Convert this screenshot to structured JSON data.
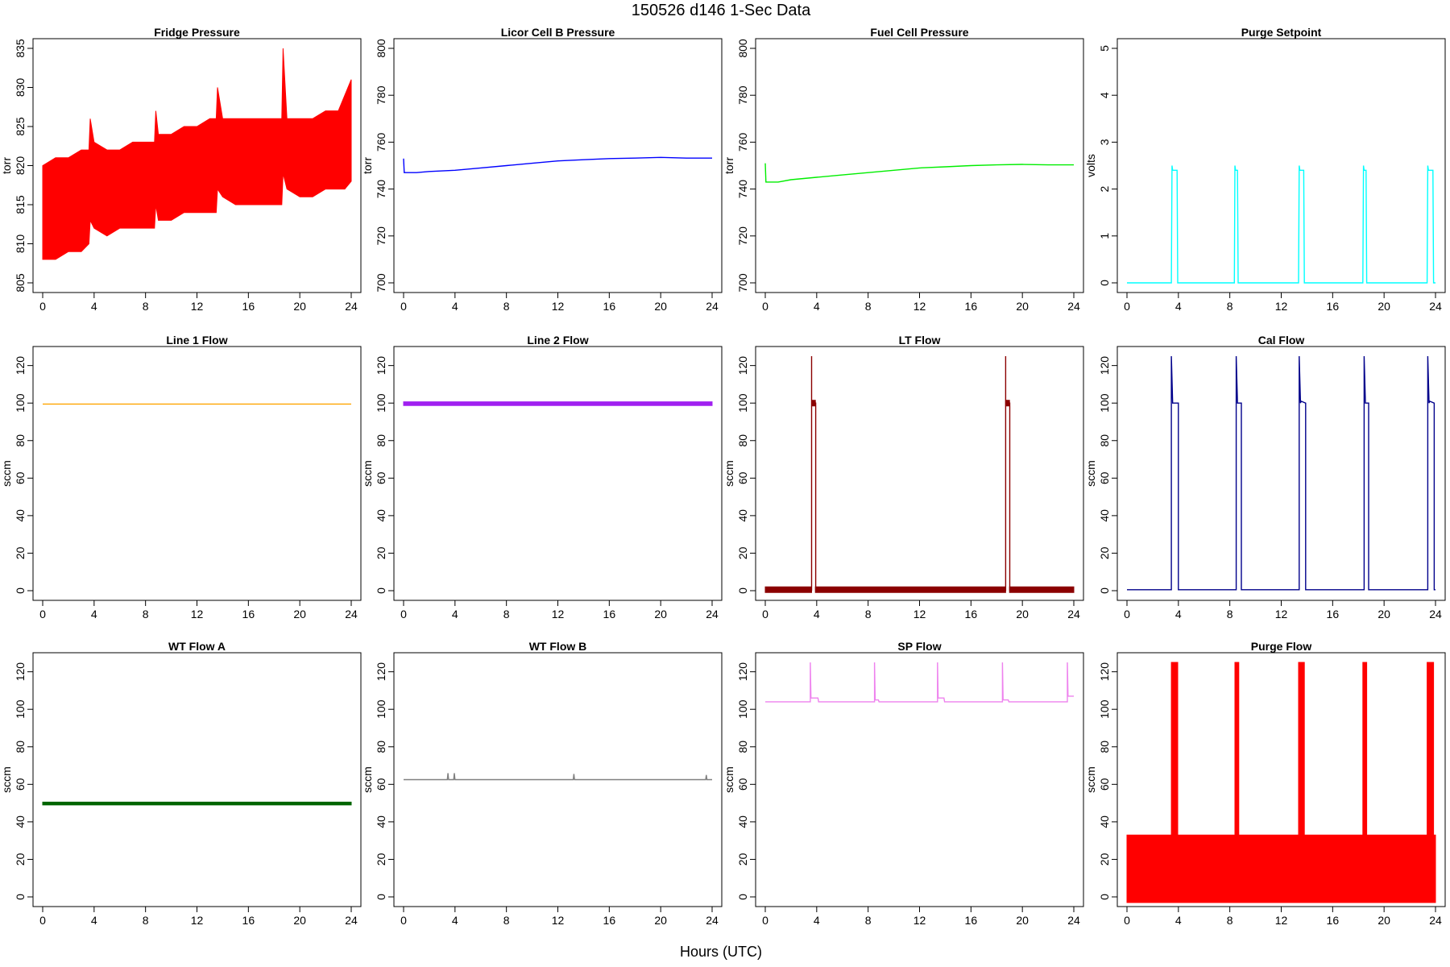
{
  "figure": {
    "title": "150526   d146   1-Sec Data",
    "xlabel": "Hours (UTC)"
  },
  "chart_data": [
    {
      "type": "line",
      "title": "Fridge Pressure",
      "ylabel": "torr",
      "color": "#ff0000",
      "xlim": [
        0,
        24
      ],
      "xticks": [
        0,
        4,
        8,
        12,
        16,
        20,
        24
      ],
      "ylim": [
        805,
        835
      ],
      "yticks": [
        805,
        810,
        815,
        820,
        825,
        830,
        835
      ],
      "series": [
        {
          "kind": "band",
          "x": [
            0,
            1,
            2,
            3,
            3.6,
            3.7,
            4,
            5,
            6,
            7,
            8,
            8.7,
            8.8,
            9,
            10,
            11,
            12,
            13,
            13.5,
            13.6,
            14,
            15,
            16,
            17,
            18,
            18.6,
            18.7,
            19,
            20,
            21,
            22,
            23,
            23.5,
            24
          ],
          "low": [
            808,
            808,
            809,
            809,
            810,
            813,
            812,
            811,
            812,
            812,
            812,
            812,
            815,
            813,
            813,
            814,
            814,
            814,
            814,
            817,
            816,
            815,
            815,
            815,
            815,
            815,
            819,
            817,
            816,
            816,
            817,
            817,
            817,
            818
          ],
          "high": [
            820,
            821,
            821,
            822,
            822,
            826,
            823,
            822,
            822,
            823,
            823,
            823,
            827,
            824,
            824,
            825,
            825,
            826,
            826,
            830,
            826,
            826,
            826,
            826,
            826,
            826,
            835,
            826,
            826,
            826,
            827,
            827,
            829,
            831
          ]
        }
      ]
    },
    {
      "type": "line",
      "title": "Licor Cell B Pressure",
      "ylabel": "torr",
      "color": "#0000ff",
      "xlim": [
        0,
        24
      ],
      "xticks": [
        0,
        4,
        8,
        12,
        16,
        20,
        24
      ],
      "ylim": [
        700,
        800
      ],
      "yticks": [
        700,
        720,
        740,
        760,
        780,
        800
      ],
      "series": [
        {
          "kind": "line",
          "x": [
            0,
            0.05,
            0.1,
            1,
            2,
            4,
            6,
            8,
            10,
            12,
            14,
            16,
            18,
            20,
            22,
            24
          ],
          "y": [
            753,
            747,
            747,
            747,
            747.5,
            748,
            749,
            750,
            751,
            752,
            752.5,
            753,
            753.2,
            753.5,
            753.2,
            753.2
          ]
        }
      ]
    },
    {
      "type": "line",
      "title": "Fuel Cell Pressure",
      "ylabel": "torr",
      "color": "#00ee00",
      "xlim": [
        0,
        24
      ],
      "xticks": [
        0,
        4,
        8,
        12,
        16,
        20,
        24
      ],
      "ylim": [
        700,
        800
      ],
      "yticks": [
        700,
        720,
        740,
        760,
        780,
        800
      ],
      "series": [
        {
          "kind": "line",
          "x": [
            0,
            0.05,
            0.1,
            1,
            2,
            4,
            6,
            8,
            10,
            12,
            14,
            16,
            18,
            20,
            22,
            24
          ],
          "y": [
            751,
            743,
            743,
            743,
            744,
            745,
            746,
            747,
            748,
            749,
            749.5,
            750,
            750.3,
            750.5,
            750.3,
            750.3
          ]
        }
      ]
    },
    {
      "type": "line",
      "title": "Purge Setpoint",
      "ylabel": "volts",
      "color": "#00ffff",
      "xlim": [
        0,
        24
      ],
      "xticks": [
        0,
        4,
        8,
        12,
        16,
        20,
        24
      ],
      "ylim": [
        0,
        5
      ],
      "yticks": [
        0,
        1,
        2,
        3,
        4,
        5
      ],
      "series": [
        {
          "kind": "line",
          "x": [
            0,
            3.45,
            3.5,
            3.55,
            3.9,
            3.95,
            8.35,
            8.4,
            8.45,
            8.6,
            8.65,
            13.35,
            13.4,
            13.45,
            13.75,
            13.8,
            18.35,
            18.4,
            18.45,
            18.6,
            18.65,
            23.35,
            23.4,
            23.45,
            23.8,
            23.85,
            24
          ],
          "y": [
            0,
            0,
            2.5,
            2.4,
            2.4,
            0,
            0,
            2.5,
            2.4,
            2.4,
            0,
            0,
            2.5,
            2.4,
            2.4,
            0,
            0,
            2.5,
            2.4,
            2.4,
            0,
            0,
            2.5,
            2.4,
            2.4,
            0,
            0
          ]
        }
      ]
    },
    {
      "type": "line",
      "title": "Line 1 Flow",
      "ylabel": "sccm",
      "color": "#ffa500",
      "xlim": [
        0,
        24
      ],
      "xticks": [
        0,
        4,
        8,
        12,
        16,
        20,
        24
      ],
      "ylim": [
        0,
        125
      ],
      "yticks": [
        0,
        20,
        40,
        60,
        80,
        100,
        120
      ],
      "series": [
        {
          "kind": "line",
          "x": [
            0,
            24
          ],
          "y": [
            99.5,
            99.5
          ]
        }
      ]
    },
    {
      "type": "line",
      "title": "Line 2 Flow",
      "ylabel": "sccm",
      "color": "#a020f0",
      "xlim": [
        0,
        24
      ],
      "xticks": [
        0,
        4,
        8,
        12,
        16,
        20,
        24
      ],
      "ylim": [
        0,
        125
      ],
      "yticks": [
        0,
        20,
        40,
        60,
        80,
        100,
        120
      ],
      "series": [
        {
          "kind": "band",
          "x": [
            0,
            24
          ],
          "low": [
            98.7,
            98.7
          ],
          "high": [
            100.7,
            100.7
          ]
        }
      ]
    },
    {
      "type": "line",
      "title": "LT Flow",
      "ylabel": "sccm",
      "color": "#8b0000",
      "xlim": [
        0,
        24
      ],
      "xticks": [
        0,
        4,
        8,
        12,
        16,
        20,
        24
      ],
      "ylim": [
        0,
        125
      ],
      "yticks": [
        0,
        20,
        40,
        60,
        80,
        100,
        120
      ],
      "series": [
        {
          "kind": "band",
          "x": [
            0,
            3.6
          ],
          "low": [
            -1,
            -1
          ],
          "high": [
            2,
            2
          ]
        },
        {
          "kind": "band",
          "x": [
            3.6,
            3.9
          ],
          "low": [
            98.5,
            98.5
          ],
          "high": [
            101.5,
            101.5
          ]
        },
        {
          "kind": "band",
          "x": [
            3.9,
            18.7
          ],
          "low": [
            -1,
            -1
          ],
          "high": [
            2,
            2
          ]
        },
        {
          "kind": "band",
          "x": [
            18.7,
            19.0
          ],
          "low": [
            98.5,
            98.5
          ],
          "high": [
            101.5,
            101.5
          ]
        },
        {
          "kind": "band",
          "x": [
            19.0,
            24
          ],
          "low": [
            -1,
            -1
          ],
          "high": [
            2,
            2
          ]
        },
        {
          "kind": "line",
          "x": [
            3.6,
            3.6,
            3.6,
            3.92,
            3.92
          ],
          "y": [
            0,
            125,
            100,
            100,
            0
          ]
        },
        {
          "kind": "line",
          "x": [
            18.7,
            18.7,
            18.7,
            19.02,
            19.02
          ],
          "y": [
            0,
            125,
            100,
            100,
            0
          ]
        }
      ]
    },
    {
      "type": "line",
      "title": "Cal Flow",
      "ylabel": "sccm",
      "color": "#00008b",
      "xlim": [
        0,
        24
      ],
      "xticks": [
        0,
        4,
        8,
        12,
        16,
        20,
        24
      ],
      "ylim": [
        0,
        125
      ],
      "yticks": [
        0,
        20,
        40,
        60,
        80,
        100,
        120
      ],
      "series": [
        {
          "kind": "line",
          "x": [
            0,
            3.45,
            3.45,
            3.55,
            3.6,
            4.0,
            4.0,
            8.5,
            8.5,
            8.6,
            8.9,
            8.9,
            13.4,
            13.4,
            13.5,
            13.55,
            13.9,
            13.9,
            18.45,
            18.45,
            18.55,
            18.8,
            18.8,
            23.4,
            23.4,
            23.5,
            23.55,
            23.9,
            23.9,
            24
          ],
          "y": [
            0.5,
            0.5,
            125,
            100,
            100,
            100,
            0.5,
            0.5,
            125,
            100,
            100,
            0.5,
            0.5,
            125,
            100,
            101,
            100,
            0.5,
            0.5,
            125,
            100,
            100,
            0.5,
            0.5,
            125,
            100,
            101,
            100,
            0.5,
            0.5
          ]
        }
      ]
    },
    {
      "type": "line",
      "title": "WT Flow A",
      "ylabel": "sccm",
      "color": "#006400",
      "xlim": [
        0,
        24
      ],
      "xticks": [
        0,
        4,
        8,
        12,
        16,
        20,
        24
      ],
      "ylim": [
        0,
        125
      ],
      "yticks": [
        0,
        20,
        40,
        60,
        80,
        100,
        120
      ],
      "series": [
        {
          "kind": "band",
          "x": [
            0,
            24
          ],
          "low": [
            49,
            49
          ],
          "high": [
            50.5,
            50.5
          ]
        }
      ]
    },
    {
      "type": "line",
      "title": "WT Flow B",
      "ylabel": "sccm",
      "color": "#808080",
      "xlim": [
        0,
        24
      ],
      "xticks": [
        0,
        4,
        8,
        12,
        16,
        20,
        24
      ],
      "ylim": [
        0,
        125
      ],
      "yticks": [
        0,
        20,
        40,
        60,
        80,
        100,
        120
      ],
      "series": [
        {
          "kind": "line",
          "x": [
            0,
            3.4,
            3.45,
            3.5,
            3.9,
            3.95,
            4.0,
            13.2,
            13.25,
            13.3,
            23.5,
            23.55,
            23.6,
            24
          ],
          "y": [
            62.5,
            62.5,
            66,
            62.5,
            62.5,
            66,
            62.5,
            62.5,
            65.5,
            62.5,
            62.5,
            65,
            62.5,
            62.5
          ]
        }
      ]
    },
    {
      "type": "line",
      "title": "SP Flow",
      "ylabel": "sccm",
      "color": "#ee82ee",
      "xlim": [
        0,
        24
      ],
      "xticks": [
        0,
        4,
        8,
        12,
        16,
        20,
        24
      ],
      "ylim": [
        0,
        125
      ],
      "yticks": [
        0,
        20,
        40,
        60,
        80,
        100,
        120
      ],
      "series": [
        {
          "kind": "line",
          "x": [
            0,
            3.5,
            3.5,
            3.55,
            3.6,
            4.1,
            4.15,
            8.5,
            8.5,
            8.55,
            8.6,
            8.8,
            8.85,
            13.4,
            13.4,
            13.45,
            13.5,
            13.9,
            13.95,
            18.45,
            18.45,
            18.5,
            18.55,
            18.9,
            18.95,
            23.5,
            23.5,
            23.55,
            23.6,
            24
          ],
          "y": [
            104,
            104,
            125,
            106,
            106,
            106,
            104,
            104,
            125,
            105,
            105,
            105,
            104,
            104,
            125,
            106,
            106,
            106,
            104,
            104,
            125,
            105,
            105,
            105,
            104,
            104,
            125,
            107,
            107,
            107
          ]
        }
      ]
    },
    {
      "type": "line",
      "title": "Purge Flow",
      "ylabel": "sccm",
      "color": "#ff0000",
      "xlim": [
        0,
        24
      ],
      "xticks": [
        0,
        4,
        8,
        12,
        16,
        20,
        24
      ],
      "ylim": [
        0,
        125
      ],
      "yticks": [
        0,
        20,
        40,
        60,
        80,
        100,
        120
      ],
      "series": [
        {
          "kind": "band",
          "x": [
            0,
            24
          ],
          "low": [
            -3,
            -3
          ],
          "high": [
            33,
            33
          ]
        },
        {
          "kind": "band",
          "x": [
            3.45,
            3.95
          ],
          "low": [
            -3,
            -3
          ],
          "high": [
            125,
            125
          ]
        },
        {
          "kind": "band",
          "x": [
            8.4,
            8.7
          ],
          "low": [
            -3,
            -3
          ],
          "high": [
            125,
            125
          ]
        },
        {
          "kind": "band",
          "x": [
            13.35,
            13.8
          ],
          "low": [
            -3,
            -3
          ],
          "high": [
            125,
            125
          ]
        },
        {
          "kind": "band",
          "x": [
            18.35,
            18.65
          ],
          "low": [
            -3,
            -3
          ],
          "high": [
            125,
            125
          ]
        },
        {
          "kind": "band",
          "x": [
            23.35,
            23.85
          ],
          "low": [
            -3,
            -3
          ],
          "high": [
            125,
            125
          ]
        }
      ]
    }
  ]
}
